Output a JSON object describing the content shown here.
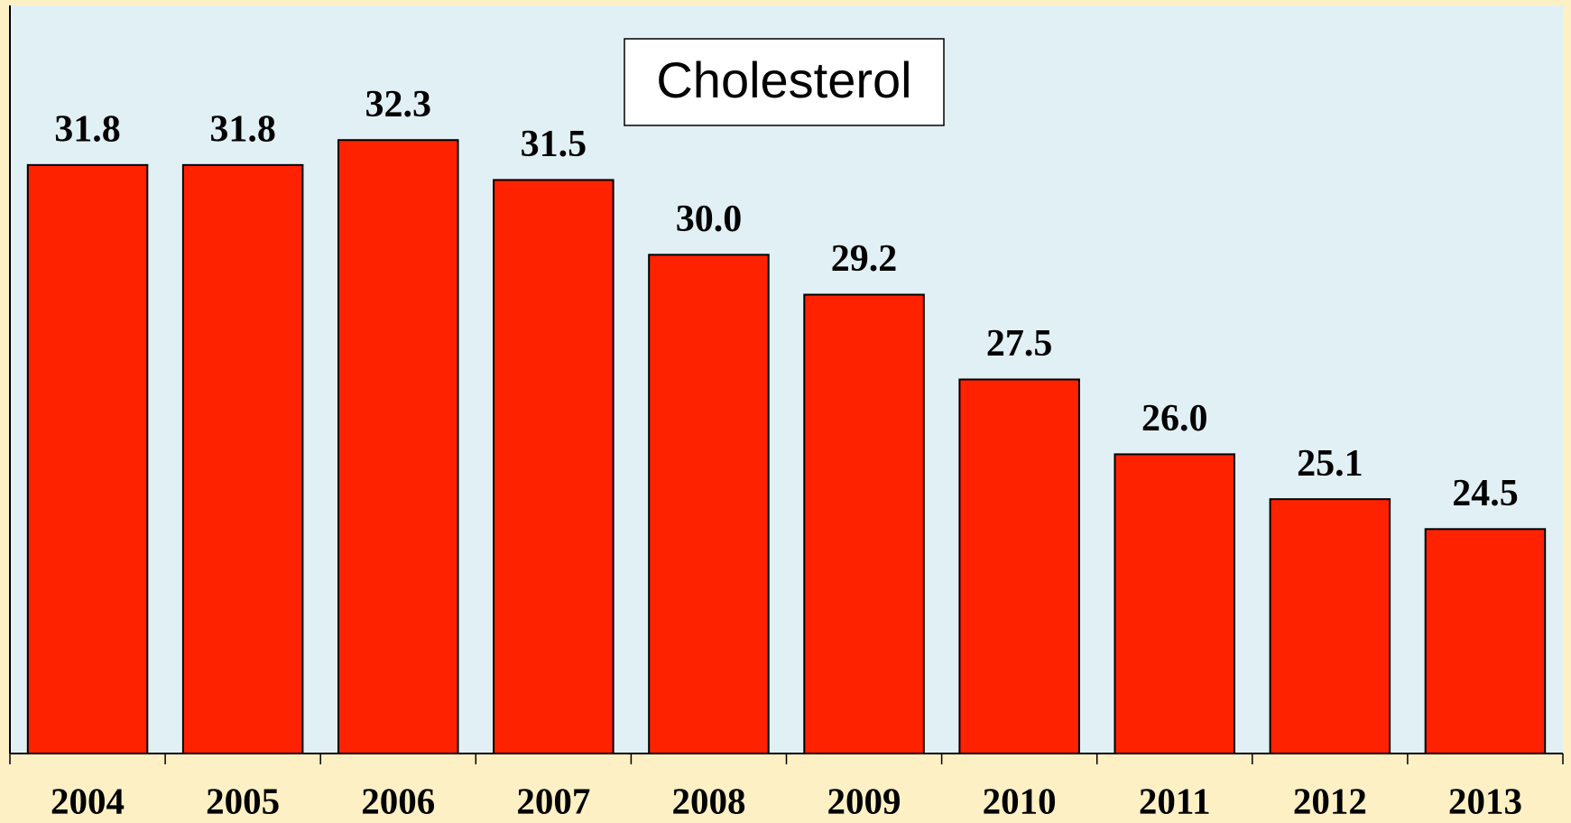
{
  "chart_data": {
    "type": "bar",
    "title": "Cholesterol",
    "categories": [
      "2004",
      "2005",
      "2006",
      "2007",
      "2008",
      "2009",
      "2010",
      "2011",
      "2012",
      "2013"
    ],
    "values": [
      31.8,
      31.8,
      32.3,
      31.5,
      30.0,
      29.2,
      27.5,
      26.0,
      25.1,
      24.5
    ],
    "value_labels": [
      "31.8",
      "31.8",
      "32.3",
      "31.5",
      "30.0",
      "29.2",
      "27.5",
      "26.0",
      "25.1",
      "24.5"
    ],
    "color": "#ff2200",
    "ylim": [
      20,
      35
    ]
  }
}
